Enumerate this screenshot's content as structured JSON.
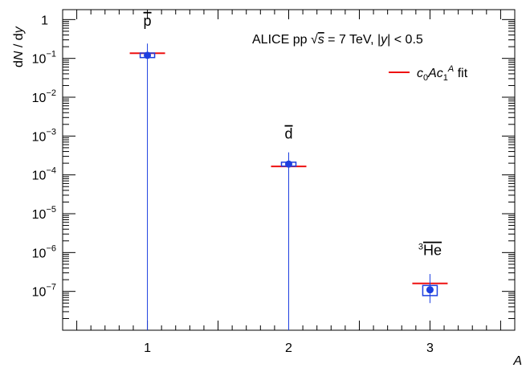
{
  "chart_data": {
    "type": "scatter",
    "title": "",
    "xlabel": "A",
    "ylabel": "dN / dy",
    "yscale": "log",
    "xlim": [
      0.4,
      3.6
    ],
    "ylim": [
      1e-08,
      1.8
    ],
    "grid": false,
    "header": {
      "prefix": "ALICE pp ",
      "sqrt_sym": "√",
      "s_var": "s",
      "mid": " = 7 TeV, |",
      "y_var": "y",
      "suffix": "| < 0.5"
    },
    "x_ticks": [
      {
        "value": 1,
        "label": "1"
      },
      {
        "value": 2,
        "label": "2"
      },
      {
        "value": 3,
        "label": "3"
      }
    ],
    "y_ticks": [
      {
        "value": 1,
        "base": "1",
        "exp": ""
      },
      {
        "value": 0.1,
        "base": "10",
        "exp": "−1"
      },
      {
        "value": 0.01,
        "base": "10",
        "exp": "−2"
      },
      {
        "value": 0.001,
        "base": "10",
        "exp": "−3"
      },
      {
        "value": 0.0001,
        "base": "10",
        "exp": "−4"
      },
      {
        "value": 1e-05,
        "base": "10",
        "exp": "−5"
      },
      {
        "value": 1e-06,
        "base": "10",
        "exp": "−6"
      },
      {
        "value": 1e-07,
        "base": "10",
        "exp": "−7"
      }
    ],
    "legend": {
      "placement": "top-right",
      "label": {
        "c": "c",
        "sub0": "0",
        "A": "A",
        "sub1": "1",
        "supA": "A",
        "tail": " fit"
      },
      "color": "#ee1111"
    },
    "data": {
      "x": [
        1,
        2,
        3
      ],
      "y": [
        0.12,
        0.00019,
        1.1e-07
      ],
      "y_err_low": [
        0.12,
        0.00019,
        6e-08
      ],
      "y_err_high": [
        0.12,
        0.00019,
        1.7e-07
      ],
      "sys_low": [
        0.105,
        0.000168,
        7.8e-08
      ],
      "sys_high": [
        0.137,
        0.000212,
        1.42e-07
      ],
      "color": "#1d3fe0"
    },
    "fit": {
      "x": [
        1,
        2,
        3
      ],
      "y": [
        0.136,
        0.000165,
        1.6e-07
      ],
      "color": "#ee1111"
    },
    "annotations": [
      {
        "x": 1,
        "y": 0.7,
        "text": "p"
      },
      {
        "x": 2,
        "y": 0.00085,
        "text": "d"
      },
      {
        "x": 3,
        "y": 8.5e-07,
        "text": "He",
        "sup": "3"
      }
    ]
  }
}
